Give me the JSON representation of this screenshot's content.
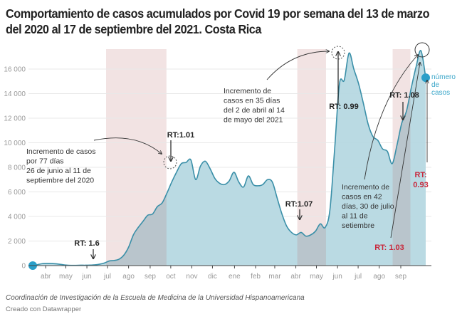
{
  "title": "Comportamiento de casos acumulados por Covid 19 por semana del 13 de marzo del 2020 al 17 de septiembre del 2021. Costa Rica",
  "footer": {
    "source": "Coordinación de Investigación de la Escuela de Medicina de la Universidad Hispanoamericana",
    "credit": "Creado con Datawrapper"
  },
  "colors": {
    "line": "#3a8fa8",
    "area": "#b6d8e2",
    "highlight_band": "#f2e3e3",
    "highlight_area": "#b9c5cc",
    "marker": "#2a9fc9",
    "rt_red": "#c8283c",
    "grid": "#e8e8e8"
  },
  "chart_data": {
    "type": "area",
    "title": "Comportamiento de casos acumulados por Covid 19 por semana del 13 de marzo del 2020 al 17 de septiembre del 2021. Costa Rica",
    "xlabel": "",
    "ylabel": "",
    "ylim": [
      0,
      17800
    ],
    "grid": true,
    "yticks": [
      0,
      2000,
      4000,
      6000,
      8000,
      10000,
      12000,
      14000,
      16000
    ],
    "ytick_labels": [
      "0",
      "2 000",
      "4 000",
      "6 000",
      "8 000",
      "10 000",
      "12 000",
      "14 000",
      "16 000"
    ],
    "xtick_labels": [
      "abr",
      "may",
      "jun",
      "jul",
      "ago",
      "sep",
      "oct",
      "nov",
      "dic",
      "ene",
      "feb",
      "mar",
      "abr",
      "may",
      "jun",
      "jul",
      "ago",
      "sep"
    ],
    "xtick_weeks": [
      2.7,
      6.9,
      11.3,
      15.6,
      20.0,
      24.5,
      28.8,
      33.2,
      37.5,
      42.1,
      46.5,
      50.5,
      54.9,
      59.2,
      63.6,
      67.9,
      72.3,
      76.8
    ],
    "x_start": "2020-03-13",
    "x_end": "2021-09-17",
    "series": [
      {
        "name": "número de casos",
        "values": [
          0,
          80,
          160,
          180,
          170,
          140,
          90,
          40,
          20,
          20,
          30,
          30,
          40,
          60,
          120,
          220,
          380,
          420,
          520,
          850,
          1500,
          2500,
          3100,
          3600,
          4100,
          4200,
          4800,
          5100,
          5900,
          6800,
          7600,
          8300,
          8400,
          8600,
          7000,
          8100,
          8500,
          7900,
          7100,
          6700,
          6600,
          6900,
          7600,
          6800,
          6400,
          7300,
          6600,
          6500,
          6600,
          7000,
          6800,
          5500,
          4200,
          3200,
          2700,
          2500,
          2700,
          2400,
          2500,
          2800,
          3400,
          3100,
          4500,
          9500,
          14800,
          15100,
          17300,
          16000,
          14800,
          13200,
          11500,
          10500,
          10200,
          9500,
          9300,
          8300,
          9800,
          11600,
          12600,
          14500,
          16200,
          17500,
          15300
        ]
      }
    ],
    "highlight_periods": [
      {
        "start_week": 15.3,
        "end_week": 27.9,
        "label": "Incremento de casos por 77 días 26 de junio al 11 de septiembre del 2020"
      },
      {
        "start_week": 55.2,
        "end_week": 61.2,
        "label": "Incremento de casos en 35 días del 2 de abril al 14 de mayo del 2021"
      },
      {
        "start_week": 75.1,
        "end_week": 78.8,
        "label": "Incremento de casos en 42 días, 30 de julio al 11 de setiembre"
      }
    ],
    "annotations": [
      {
        "text": "Incremento de casos",
        "line": 1,
        "group": "a1"
      },
      {
        "text": "por 77 días",
        "line": 2,
        "group": "a1"
      },
      {
        "text": "26 de junio al 11 de",
        "line": 3,
        "group": "a1"
      },
      {
        "text": "septiembre del 2020",
        "line": 4,
        "group": "a1"
      },
      {
        "text": "Incremento de",
        "line": 1,
        "group": "a2"
      },
      {
        "text": "casos en 35 días",
        "line": 2,
        "group": "a2"
      },
      {
        "text": "del 2 de abril al 14",
        "line": 3,
        "group": "a2"
      },
      {
        "text": "de mayo del 2021",
        "line": 4,
        "group": "a2"
      },
      {
        "text": "Incremento de",
        "line": 1,
        "group": "a3"
      },
      {
        "text": "casos en 42",
        "line": 2,
        "group": "a3"
      },
      {
        "text": "días, 30 de julio",
        "line": 3,
        "group": "a3"
      },
      {
        "text": "al 11 de",
        "line": 4,
        "group": "a3"
      },
      {
        "text": "setiembre",
        "line": 5,
        "group": "a3"
      }
    ],
    "rt_labels": [
      {
        "text": "RT: 1.6",
        "week": 13.3,
        "color": "black"
      },
      {
        "text": "RT:1.01",
        "week": 27.8,
        "color": "black"
      },
      {
        "text": "RT:1.07",
        "week": 53.6,
        "color": "black"
      },
      {
        "text": "RT: 0.99",
        "week": 61.2,
        "color": "black"
      },
      {
        "text": "RT: 1.08",
        "week": 73.0,
        "color": "black"
      },
      {
        "text": "RT: 1.03",
        "week": 76.5,
        "color": "red"
      },
      {
        "text": "RT:",
        "week": 78.8,
        "color": "red"
      },
      {
        "text": "0.93",
        "week": 78.8,
        "color": "red"
      }
    ],
    "legend": {
      "label_lines": [
        "número",
        "de",
        "casos"
      ],
      "placement": "right-end"
    }
  }
}
